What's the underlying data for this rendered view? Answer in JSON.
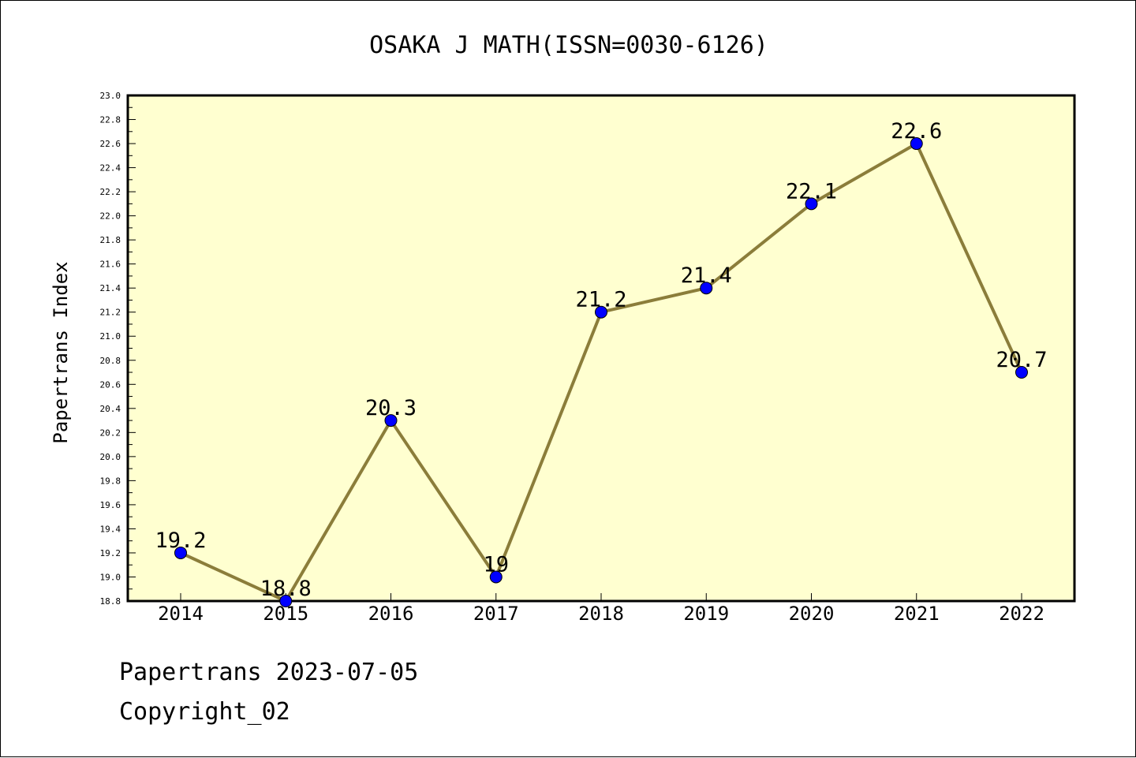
{
  "chart_data": {
    "type": "line",
    "title": "OSAKA J MATH(ISSN=0030-6126)",
    "xlabel": "",
    "ylabel": "Papertrans Index",
    "categories": [
      "2014",
      "2015",
      "2016",
      "2017",
      "2018",
      "2019",
      "2020",
      "2021",
      "2022"
    ],
    "values": [
      19.2,
      18.8,
      20.3,
      19,
      21.2,
      21.4,
      22.1,
      22.6,
      20.7
    ],
    "data_labels": [
      "19.2",
      "18.8",
      "20.3",
      "19",
      "21.2",
      "21.4",
      "22.1",
      "22.6",
      "20.7"
    ],
    "ylim": [
      18.8,
      23.0
    ],
    "yticks": [
      "18.8",
      "19.0",
      "19.2",
      "19.4",
      "19.6",
      "19.8",
      "20.0",
      "20.2",
      "20.4",
      "20.6",
      "20.8",
      "21.0",
      "21.2",
      "21.4",
      "21.6",
      "21.8",
      "22.0",
      "22.2",
      "22.4",
      "22.6",
      "22.8",
      "23.0"
    ],
    "grid": false,
    "colors": {
      "plot_background": "#ffffd0",
      "line": "#8b7d3a",
      "marker": "#0000ff"
    }
  },
  "footer": {
    "line1": "Papertrans 2023-07-05",
    "line2": "Copyright_02"
  }
}
